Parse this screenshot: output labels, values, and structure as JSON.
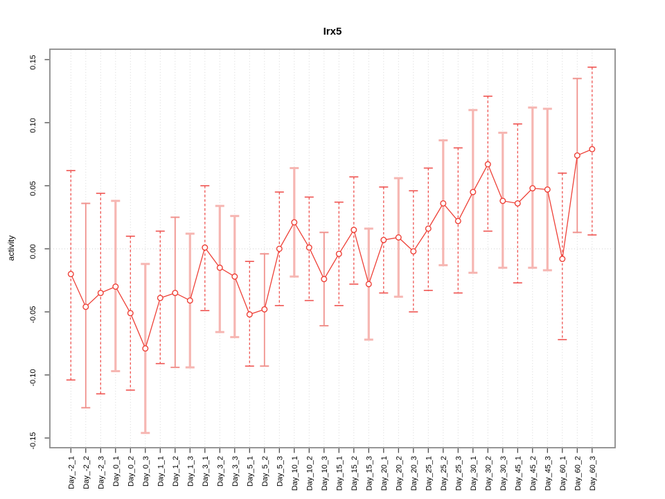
{
  "figure": {
    "title": "Irx5",
    "ylabel": "activity"
  },
  "chart_data": {
    "type": "line",
    "title": "Irx5",
    "xlabel": "",
    "ylabel": "activity",
    "ylim": [
      -0.15,
      0.15
    ],
    "yticks": [
      -0.15,
      -0.1,
      -0.05,
      0.0,
      0.05,
      0.1,
      0.15
    ],
    "ytick_labels": [
      "-0.15",
      "-0.10",
      "-0.05",
      "0.00",
      "0.05",
      "0.10",
      "0.15"
    ],
    "grid": "vertical-dotted",
    "zero_line": true,
    "legend": "none",
    "marker": "open-circle",
    "categories": [
      "Day_-2_1",
      "Day_-2_2",
      "Day_-2_3",
      "Day_0_1",
      "Day_0_2",
      "Day_0_3",
      "Day_1_1",
      "Day_1_2",
      "Day_1_3",
      "Day_3_1",
      "Day_3_2",
      "Day_3_3",
      "Day_5_1",
      "Day_5_2",
      "Day_5_3",
      "Day_10_1",
      "Day_10_2",
      "Day_10_3",
      "Day_15_1",
      "Day_15_2",
      "Day_15_3",
      "Day_20_1",
      "Day_20_2",
      "Day_20_3",
      "Day_25_1",
      "Day_25_2",
      "Day_25_3",
      "Day_30_1",
      "Day_30_2",
      "Day_30_3",
      "Day_45_1",
      "Day_45_2",
      "Day_45_3",
      "Day_60_1",
      "Day_60_2",
      "Day_60_3"
    ],
    "series": [
      {
        "name": "activity",
        "values": [
          -0.02,
          -0.046,
          -0.035,
          -0.03,
          -0.051,
          -0.079,
          -0.039,
          -0.035,
          -0.041,
          0.001,
          -0.015,
          -0.022,
          -0.052,
          -0.048,
          0.0,
          0.021,
          0.001,
          -0.024,
          -0.004,
          0.015,
          -0.028,
          0.007,
          0.009,
          -0.002,
          0.016,
          0.036,
          0.022,
          0.045,
          0.067,
          0.038,
          0.036,
          0.048,
          0.047,
          -0.008,
          0.074,
          0.079
        ]
      },
      {
        "name": "lower",
        "values": [
          -0.104,
          -0.126,
          -0.115,
          -0.097,
          -0.112,
          -0.146,
          -0.091,
          -0.094,
          -0.094,
          -0.049,
          -0.066,
          -0.07,
          -0.093,
          -0.093,
          -0.045,
          -0.022,
          -0.041,
          -0.061,
          -0.045,
          -0.028,
          -0.072,
          -0.035,
          -0.038,
          -0.05,
          -0.033,
          -0.013,
          -0.035,
          -0.019,
          0.014,
          -0.015,
          -0.027,
          -0.015,
          -0.017,
          -0.072,
          0.013,
          0.011
        ]
      },
      {
        "name": "upper",
        "values": [
          0.062,
          0.036,
          0.044,
          0.038,
          0.01,
          -0.012,
          0.014,
          0.025,
          0.012,
          0.05,
          0.034,
          0.026,
          -0.01,
          -0.004,
          0.045,
          0.064,
          0.041,
          0.013,
          0.037,
          0.057,
          0.016,
          0.049,
          0.056,
          0.046,
          0.064,
          0.086,
          0.08,
          0.11,
          0.121,
          0.092,
          0.099,
          0.112,
          0.111,
          0.06,
          0.135,
          0.144
        ]
      }
    ],
    "bar_styles": [
      "dashed",
      "solid",
      "dashed",
      "thick",
      "dashed",
      "thick",
      "dashed",
      "solid",
      "thick",
      "dashed",
      "thick",
      "thick",
      "dashed",
      "solid",
      "dashed",
      "thick",
      "dashed",
      "solid",
      "dashed",
      "dashed",
      "thick",
      "dashed",
      "thick",
      "dashed",
      "dashed",
      "thick",
      "dashed",
      "thick",
      "dashed",
      "thick",
      "dashed",
      "thick",
      "thick",
      "dashed",
      "solid",
      "dashed"
    ],
    "colors": {
      "point": "#ee4037",
      "line": "#ee4037",
      "bar_dashed": "#ef5350",
      "bar_solid": "#f0928d",
      "bar_thick": "#f6b6b2",
      "grid": "#d9d9d9",
      "zero": "#cfcfcf",
      "box": "#8a8a8a",
      "tick": "#3a3a3a",
      "text": "#000000"
    }
  }
}
